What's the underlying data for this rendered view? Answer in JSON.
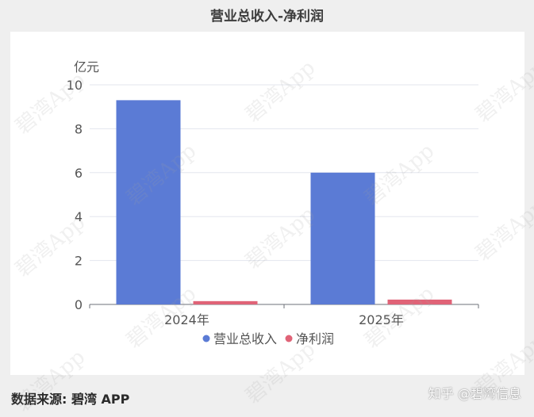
{
  "header": {
    "title": "营业总收入-净利润"
  },
  "footer": {
    "source": "数据来源: 碧湾 APP",
    "credit": "知乎 @碧湾信息"
  },
  "watermark": "碧湾App",
  "chart_data": {
    "type": "bar",
    "ylabel": "亿元",
    "ylim": [
      0,
      10
    ],
    "yticks": [
      0,
      2,
      4,
      6,
      8,
      10
    ],
    "categories": [
      "2024年",
      "2025年"
    ],
    "series": [
      {
        "name": "营业总收入",
        "color": "#5b7bd5",
        "values": [
          9.3,
          6.0
        ]
      },
      {
        "name": "净利润",
        "color": "#e06377",
        "values": [
          0.15,
          0.22
        ]
      }
    ],
    "grid": true,
    "legend": "bottom"
  }
}
